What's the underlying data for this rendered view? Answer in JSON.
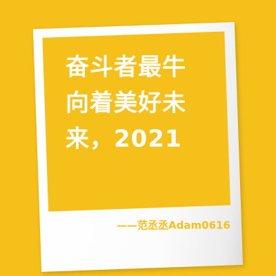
{
  "colors": {
    "background": "#F5C01A",
    "card": "#FFFFFF",
    "inner_box": "#F5C01A",
    "text": "#FFFFFF",
    "signature": "#F5C01A"
  },
  "card": {
    "lines": [
      "奋斗者最牛",
      "向着美好未",
      "来，2021"
    ],
    "signature": "——范丞丞Adam0616"
  }
}
